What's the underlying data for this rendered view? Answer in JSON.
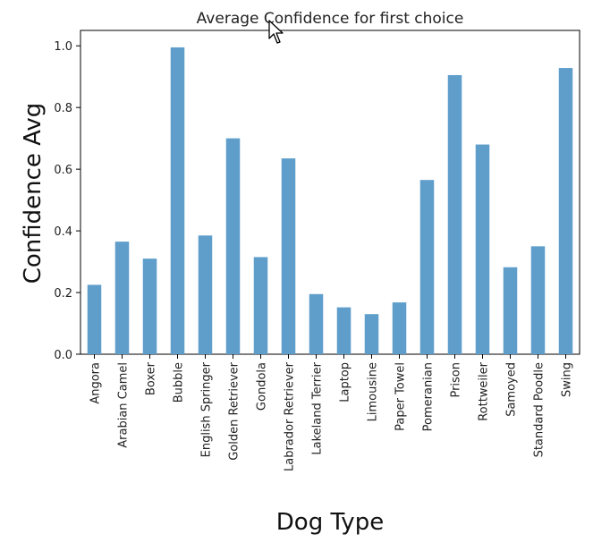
{
  "chart_data": {
    "type": "bar",
    "title": "Average Confidence for first choice",
    "xlabel": "Dog Type",
    "ylabel": "Confidence Avg",
    "ylim": [
      0,
      1.05
    ],
    "yticks": [
      0.0,
      0.2,
      0.4,
      0.6,
      0.8,
      1.0
    ],
    "ytick_labels": [
      "0.0",
      "0.2",
      "0.4",
      "0.6",
      "0.8",
      "1.0"
    ],
    "categories": [
      "Angora",
      "Arabian Camel",
      "Boxer",
      "Bubble",
      "English Springer",
      "Golden Retriever",
      "Gondola",
      "Labrador Retriever",
      "Lakeland Terrier",
      "Laptop",
      "Limousine",
      "Paper Towel",
      "Pomeranian",
      "Prison",
      "Rottweiler",
      "Samoyed",
      "Standard Poodle",
      "Swing"
    ],
    "values": [
      0.225,
      0.365,
      0.31,
      0.995,
      0.385,
      0.7,
      0.315,
      0.635,
      0.195,
      0.152,
      0.13,
      0.168,
      0.565,
      0.905,
      0.68,
      0.282,
      0.35,
      0.928
    ],
    "bar_color": "#5f9ecb",
    "grid": false,
    "legend": false
  },
  "cursor": {
    "icon": "mouse-pointer-icon"
  }
}
